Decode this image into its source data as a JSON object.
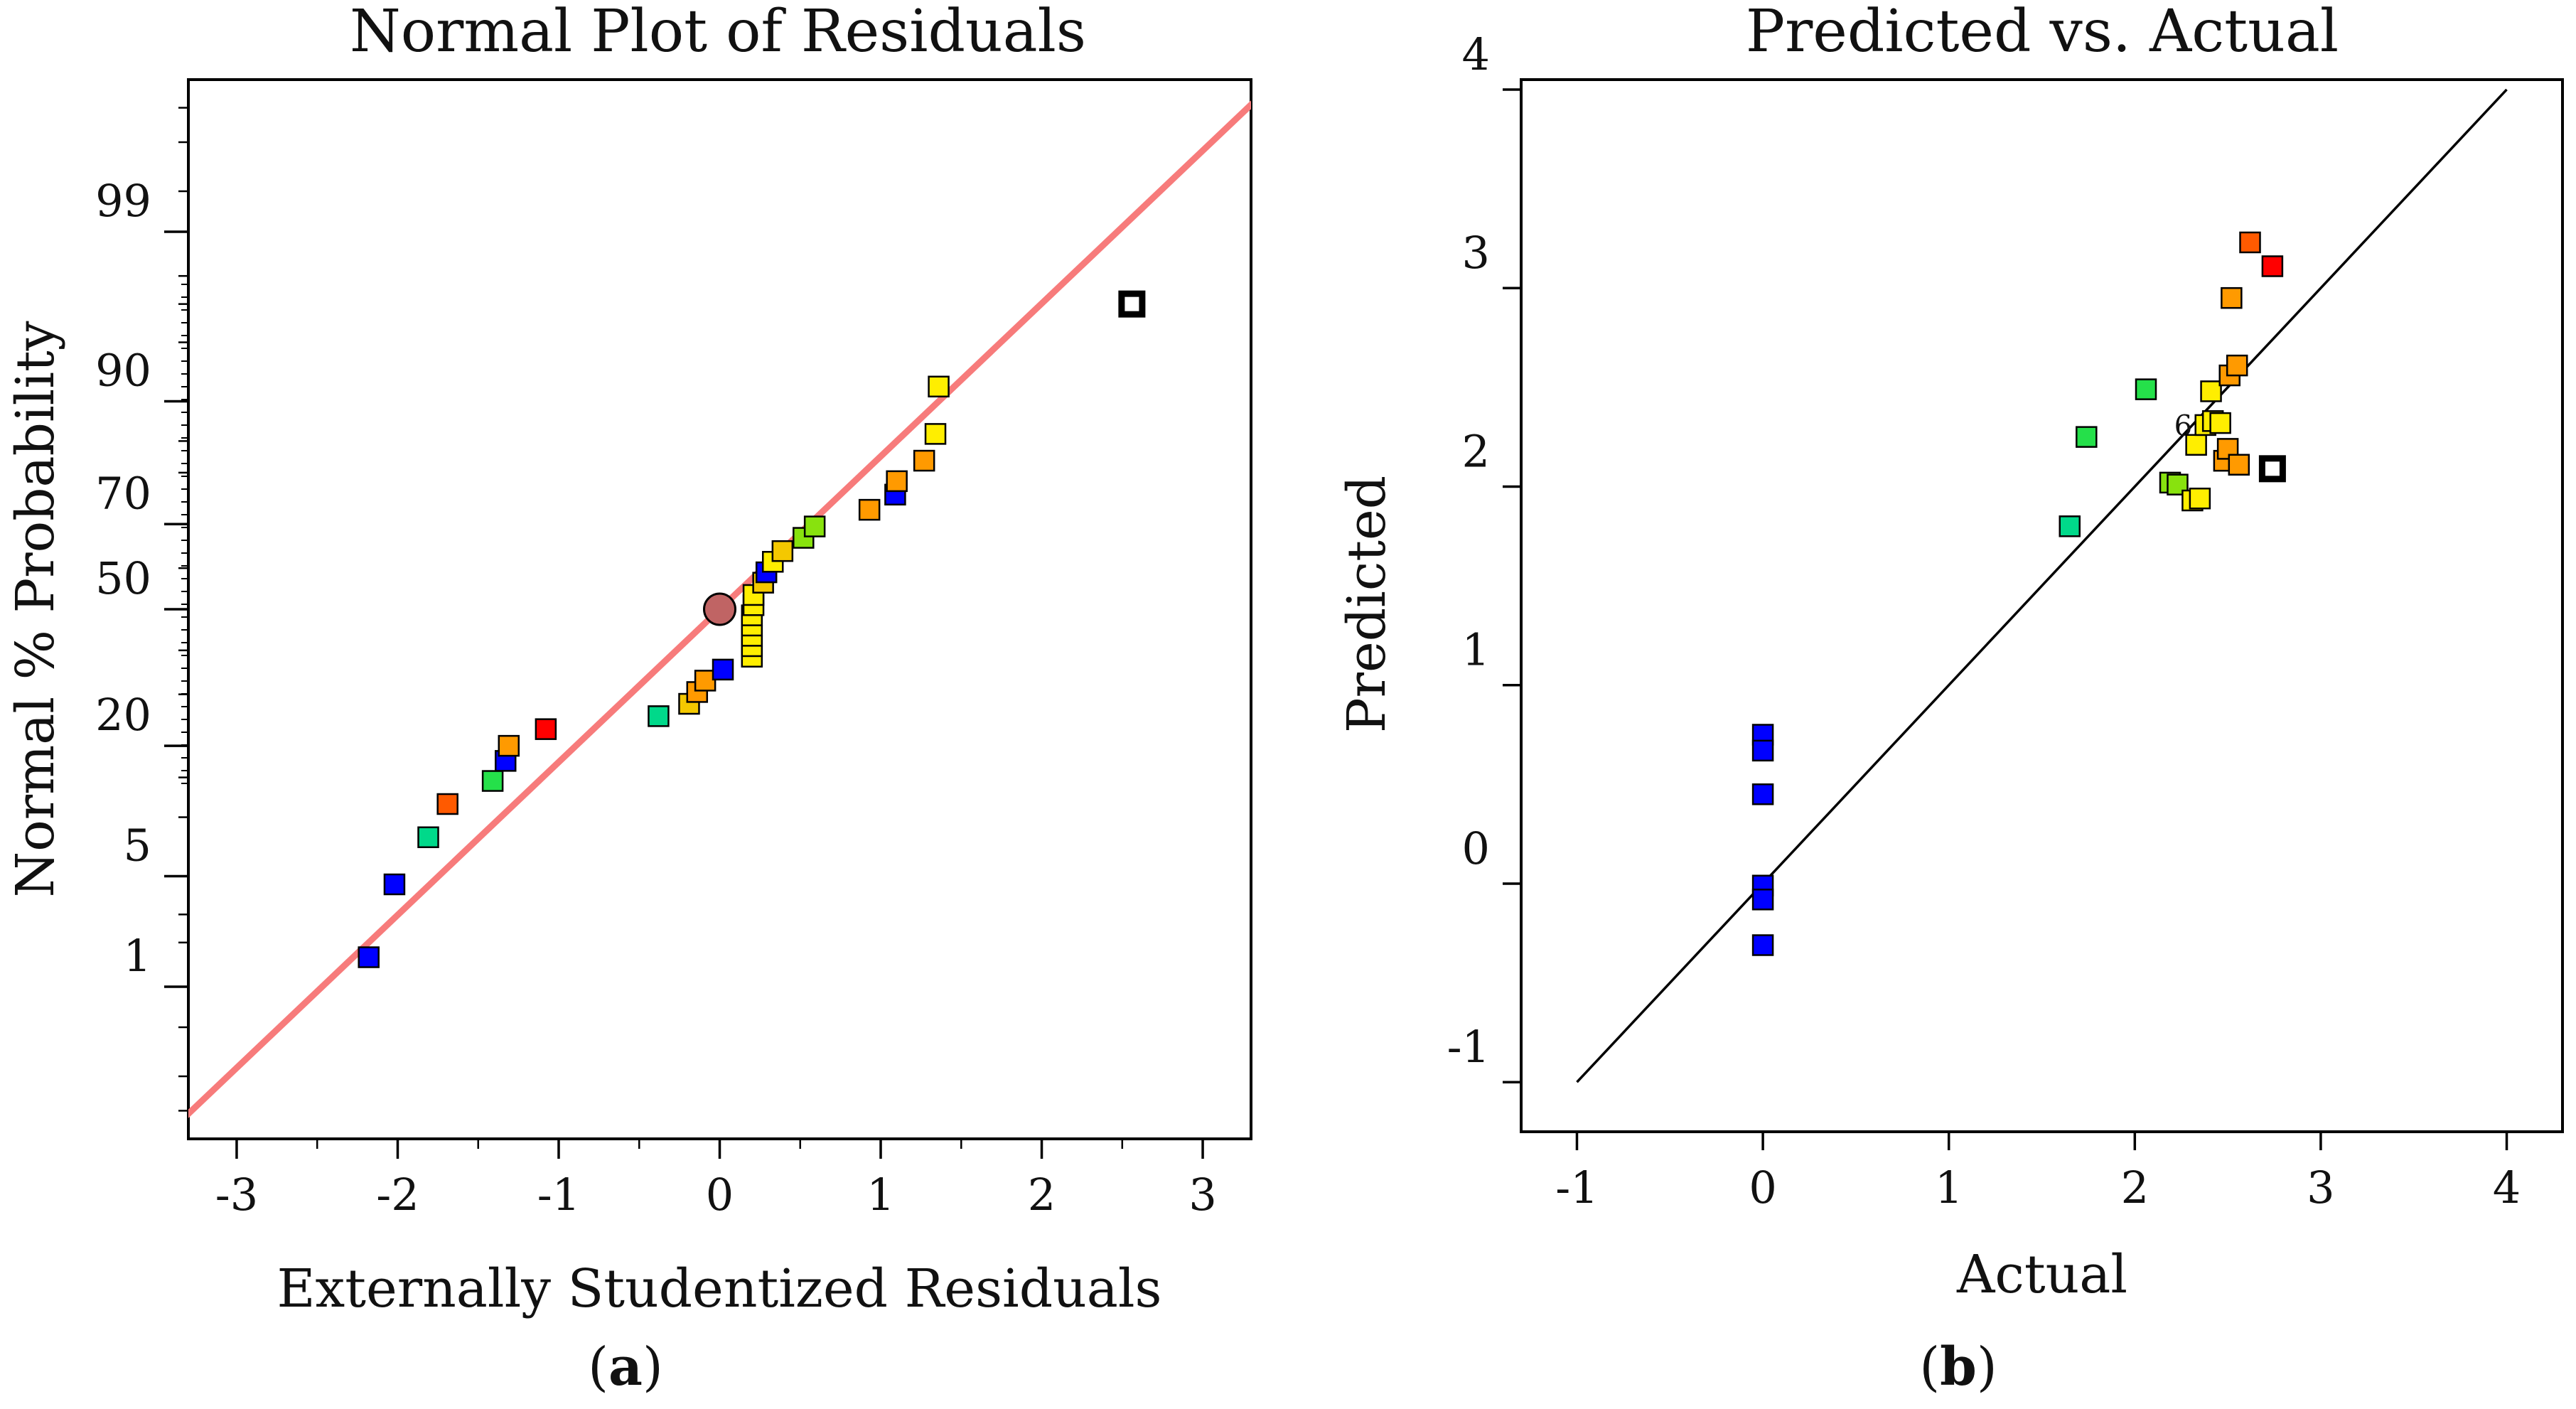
{
  "colors": {
    "blue": "#0000ff",
    "teal": "#00d98a",
    "green": "#25e04a",
    "lime": "#88e20e",
    "yellow": "#ffee00",
    "gold": "#f4c800",
    "orange": "#ff9a00",
    "orange_red": "#ff5a00",
    "red": "#ff0000",
    "ref_line": "#f77b7b",
    "center_marker": "#c06464",
    "fit_line": "#000000"
  },
  "chart_data": [
    {
      "type": "scatter",
      "title": "Normal Plot of Residuals",
      "xlabel": "Externally Studentized Residuals",
      "ylabel": "Normal % Probability",
      "sublabel_letter": "a",
      "xlim": [
        -3.3,
        3.3
      ],
      "xticks": [
        -3,
        -2,
        -1,
        0,
        1,
        2,
        3
      ],
      "ylim": [
        0.055,
        99.945
      ],
      "yticks": [
        1,
        5,
        20,
        50,
        70,
        90,
        99
      ],
      "reference_line": {
        "x": [
          -3.35,
          3.35
        ],
        "y": [
          0.08,
          99.92
        ]
      },
      "center_point": {
        "x": 0.0,
        "y": 50.0
      },
      "points": [
        {
          "x": -2.18,
          "y": 1.6,
          "color": "blue"
        },
        {
          "x": -2.02,
          "y": 4.5,
          "color": "blue"
        },
        {
          "x": -1.81,
          "y": 8.0,
          "color": "teal"
        },
        {
          "x": -1.69,
          "y": 11.5,
          "color": "orange_red"
        },
        {
          "x": -1.41,
          "y": 14.5,
          "color": "green"
        },
        {
          "x": -1.33,
          "y": 17.5,
          "color": "blue"
        },
        {
          "x": -1.31,
          "y": 20.0,
          "color": "orange"
        },
        {
          "x": -1.08,
          "y": 23.0,
          "color": "red"
        },
        {
          "x": -0.38,
          "y": 25.5,
          "color": "teal"
        },
        {
          "x": -0.19,
          "y": 28.0,
          "color": "gold"
        },
        {
          "x": -0.14,
          "y": 30.5,
          "color": "orange"
        },
        {
          "x": -0.09,
          "y": 33.0,
          "color": "orange"
        },
        {
          "x": 0.02,
          "y": 35.5,
          "color": "blue"
        },
        {
          "x": 0.2,
          "y": 38.5,
          "color": "yellow"
        },
        {
          "x": 0.2,
          "y": 41.0,
          "color": "yellow"
        },
        {
          "x": 0.2,
          "y": 43.5,
          "color": "yellow"
        },
        {
          "x": 0.2,
          "y": 46.0,
          "color": "yellow"
        },
        {
          "x": 0.2,
          "y": 48.5,
          "color": "yellow"
        },
        {
          "x": 0.21,
          "y": 51.0,
          "color": "yellow"
        },
        {
          "x": 0.21,
          "y": 53.5,
          "color": "yellow"
        },
        {
          "x": 0.27,
          "y": 56.5,
          "color": "gold"
        },
        {
          "x": 0.29,
          "y": 59.0,
          "color": "blue"
        },
        {
          "x": 0.33,
          "y": 61.5,
          "color": "yellow"
        },
        {
          "x": 0.39,
          "y": 64.0,
          "color": "gold"
        },
        {
          "x": 0.52,
          "y": 67.0,
          "color": "lime"
        },
        {
          "x": 0.59,
          "y": 69.5,
          "color": "lime"
        },
        {
          "x": 0.93,
          "y": 73.0,
          "color": "orange"
        },
        {
          "x": 1.09,
          "y": 76.0,
          "color": "blue"
        },
        {
          "x": 1.1,
          "y": 78.5,
          "color": "orange"
        },
        {
          "x": 1.27,
          "y": 82.0,
          "color": "orange"
        },
        {
          "x": 1.34,
          "y": 86.0,
          "color": "yellow"
        },
        {
          "x": 1.36,
          "y": 91.5,
          "color": "yellow"
        },
        {
          "x": 2.56,
          "y": 97.0,
          "color": "white-outlined"
        }
      ]
    },
    {
      "type": "scatter",
      "title": "Predicted vs. Actual",
      "xlabel": "Actual",
      "ylabel": "Predicted",
      "sublabel_letter": "b",
      "xlim": [
        -1.3,
        4.3
      ],
      "xticks": [
        -1,
        0,
        1,
        2,
        3,
        4
      ],
      "ylim": [
        -1.25,
        4.05
      ],
      "yticks": [
        -1,
        0,
        1,
        2,
        3,
        4
      ],
      "fit_line": {
        "x": [
          -1,
          4
        ],
        "y": [
          -1,
          4
        ]
      },
      "annotation": {
        "text": "6",
        "x": 2.26,
        "y": 2.3
      },
      "points": [
        {
          "x": 0.0,
          "y": 0.75,
          "color": "blue"
        },
        {
          "x": 0.0,
          "y": 0.67,
          "color": "blue"
        },
        {
          "x": 0.0,
          "y": 0.45,
          "color": "blue"
        },
        {
          "x": 0.0,
          "y": -0.01,
          "color": "blue"
        },
        {
          "x": 0.0,
          "y": -0.08,
          "color": "blue"
        },
        {
          "x": 0.0,
          "y": -0.31,
          "color": "blue"
        },
        {
          "x": 1.65,
          "y": 1.8,
          "color": "teal"
        },
        {
          "x": 1.74,
          "y": 2.25,
          "color": "green"
        },
        {
          "x": 2.06,
          "y": 2.49,
          "color": "green"
        },
        {
          "x": 2.19,
          "y": 2.02,
          "color": "lime"
        },
        {
          "x": 2.23,
          "y": 2.01,
          "color": "lime"
        },
        {
          "x": 2.31,
          "y": 1.93,
          "color": "yellow"
        },
        {
          "x": 2.35,
          "y": 1.94,
          "color": "yellow"
        },
        {
          "x": 2.33,
          "y": 2.21,
          "color": "yellow"
        },
        {
          "x": 2.38,
          "y": 2.31,
          "color": "yellow"
        },
        {
          "x": 2.42,
          "y": 2.33,
          "color": "yellow"
        },
        {
          "x": 2.41,
          "y": 2.48,
          "color": "yellow"
        },
        {
          "x": 2.46,
          "y": 2.32,
          "color": "yellow"
        },
        {
          "x": 2.48,
          "y": 2.13,
          "color": "orange"
        },
        {
          "x": 2.5,
          "y": 2.19,
          "color": "orange"
        },
        {
          "x": 2.56,
          "y": 2.11,
          "color": "orange"
        },
        {
          "x": 2.51,
          "y": 2.56,
          "color": "orange"
        },
        {
          "x": 2.55,
          "y": 2.61,
          "color": "orange"
        },
        {
          "x": 2.52,
          "y": 2.95,
          "color": "orange"
        },
        {
          "x": 2.62,
          "y": 3.23,
          "color": "orange_red"
        },
        {
          "x": 2.74,
          "y": 3.11,
          "color": "red"
        },
        {
          "x": 2.74,
          "y": 2.09,
          "color": "white-outlined"
        }
      ]
    }
  ]
}
